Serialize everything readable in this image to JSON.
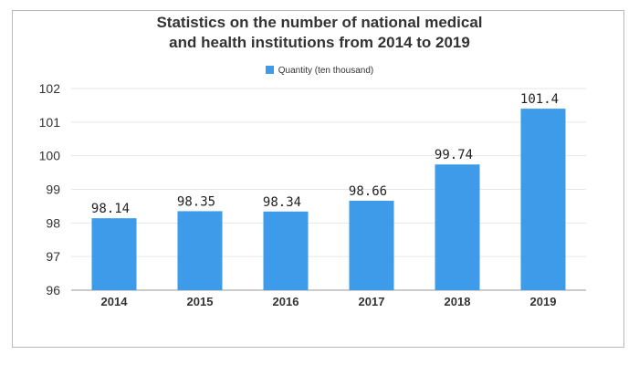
{
  "chart_data": {
    "type": "bar",
    "title_lines": [
      "Statistics on the number of national medical",
      "and health institutions from 2014 to 2019"
    ],
    "categories": [
      "2014",
      "2015",
      "2016",
      "2017",
      "2018",
      "2019"
    ],
    "series": [
      {
        "name": "Quantity (ten thousand)",
        "values": [
          98.14,
          98.35,
          98.34,
          98.66,
          99.74,
          101.4
        ],
        "labels": [
          "98.14",
          "98.35",
          "98.34",
          "98.66",
          "99.74",
          "101.4"
        ]
      }
    ],
    "xlabel": "",
    "ylabel": "",
    "ylim": [
      96,
      102
    ],
    "yticks": [
      "96",
      "97",
      "98",
      "99",
      "100",
      "101",
      "102"
    ],
    "grid": true,
    "legend_position": "top-center",
    "colors": {
      "bar": "#3d9be9",
      "grid": "#e6e6e6",
      "axis": "#999999"
    }
  }
}
